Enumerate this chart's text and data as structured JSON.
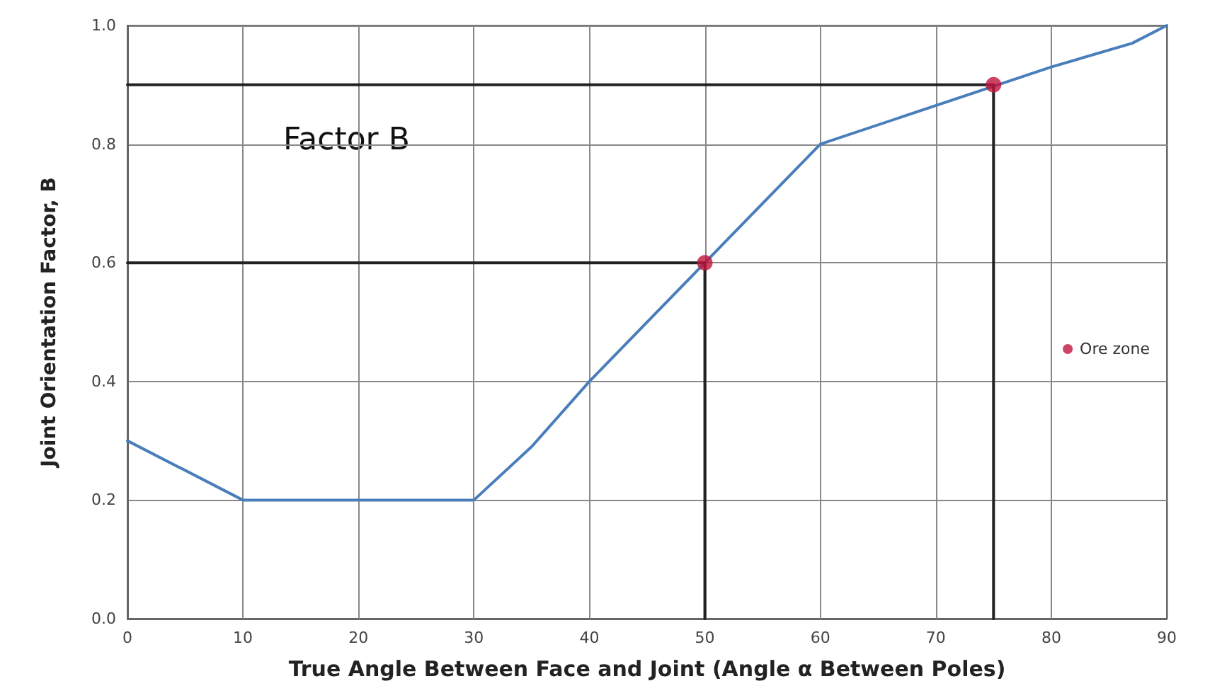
{
  "chart_data": {
    "type": "line",
    "xlabel": "True Angle Between Face and Joint (Angle α Between Poles)",
    "ylabel": "Joint Orientation Factor, B",
    "annotations": [
      "Factor B"
    ],
    "xlim": [
      0,
      90
    ],
    "xticks": [
      0,
      10,
      20,
      30,
      40,
      50,
      60,
      70,
      80,
      90
    ],
    "ylim": [
      0,
      1
    ],
    "yticks": [
      {
        "value": 0,
        "label": "0.0"
      },
      {
        "value": 0.2,
        "label": "0.2"
      },
      {
        "value": 0.4,
        "label": "0.4"
      },
      {
        "value": 0.6,
        "label": "0.6"
      },
      {
        "value": 0.8,
        "label": "0.8"
      },
      {
        "value": 1,
        "label": "1.0"
      }
    ],
    "grid": true,
    "legend": "right",
    "marker": "none",
    "line_style": "solid",
    "series": [
      {
        "color": "#4a7ebb",
        "x": [
          0,
          8,
          10,
          30,
          35,
          40,
          60,
          80,
          87,
          90
        ],
        "values": [
          0.3,
          0.22,
          0.2,
          0.2,
          0.29,
          0.4,
          0.8,
          0.93,
          0.97,
          1.0
        ]
      },
      {
        "color": "#222222",
        "x": [
          0,
          50,
          50
        ],
        "values": [
          0.6,
          0.6,
          0
        ]
      },
      {
        "color": "#222222",
        "x": [
          0,
          75,
          75
        ],
        "values": [
          0.9,
          0.9,
          0
        ]
      },
      {
        "type": "scatter",
        "name": "Ore zone",
        "color": "#c0143c",
        "marker": "circle",
        "x": [
          50,
          75
        ],
        "values": [
          0.6,
          0.9
        ]
      }
    ]
  }
}
